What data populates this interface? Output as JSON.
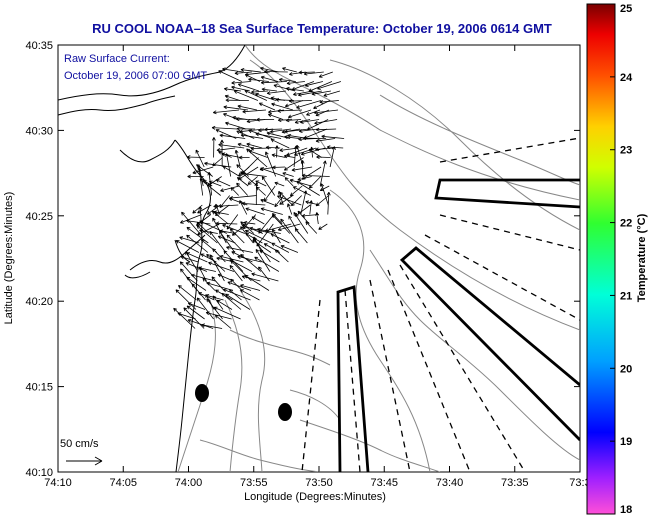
{
  "title": "RU COOL  NOAA–18  Sea Surface Temperature:  October 19, 2006 0614 GMT",
  "annotation": {
    "line1": "Raw Surface Current:",
    "line2": "October 19, 2006 07:00 GMT"
  },
  "scale": {
    "label": "50 cm/s"
  },
  "axes": {
    "xlabel": "Longitude (Degrees:Minutes)",
    "ylabel": "Latitude (Degrees:Minutes)",
    "xticks": [
      "74:10",
      "74:05",
      "74:00",
      "73:55",
      "73:50",
      "73:45",
      "73:40",
      "73:35",
      "73:3"
    ],
    "yticks": [
      "40:35",
      "40:30",
      "40:25",
      "40:20",
      "40:15",
      "40:10"
    ]
  },
  "colorbar": {
    "label": "Temperature (°C)",
    "min": 18,
    "max": 25,
    "ticks": [
      "25",
      "24",
      "23",
      "22",
      "21",
      "20",
      "19",
      "18"
    ]
  },
  "colors": {
    "title": "#1010a0",
    "coast": "#000000",
    "bathymetry": "#888888",
    "vectors": "#000000"
  }
}
